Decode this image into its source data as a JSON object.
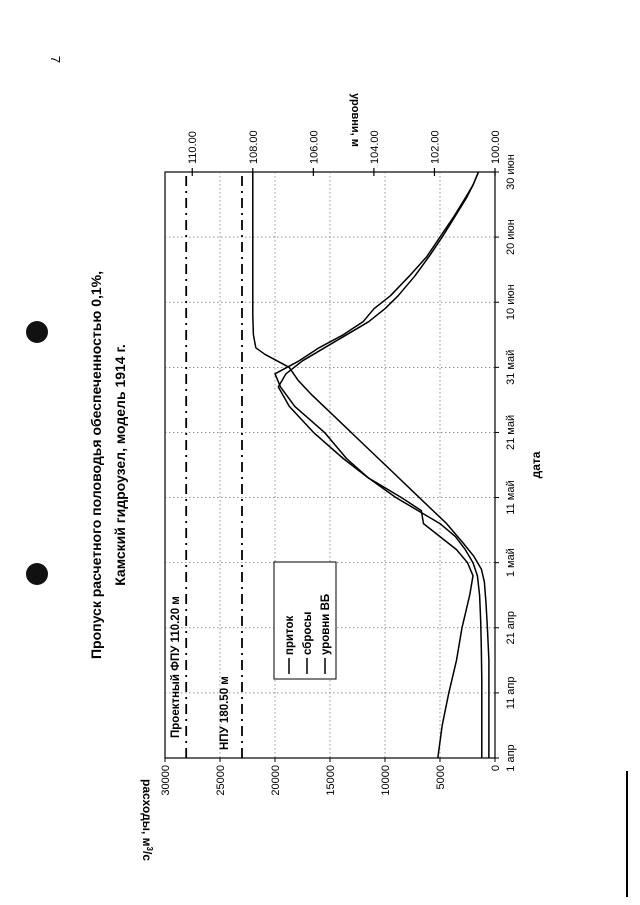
{
  "page_number": "7",
  "chart_data": {
    "type": "line",
    "title": "Пропуск расчетного половодья обеспеченностью 0,1%,",
    "subtitle": "Камский гидроузел, модель 1914 г.",
    "xlabel": "дата",
    "ylabel": "расходы, м³/с",
    "ylabel_parts": {
      "main": "расходы, м",
      "sup": "3",
      "tail": "/с"
    },
    "y2label": "уровни, м",
    "x_ticks": [
      "1 апр",
      "11 апр",
      "21 апр",
      "1 май",
      "11 май",
      "21 май",
      "31 май",
      "10 июн",
      "20 июн",
      "30 июн"
    ],
    "x_range": [
      0,
      90
    ],
    "y_ticks": [
      "0",
      "5000",
      "10000",
      "15000",
      "20000",
      "25000",
      "30000"
    ],
    "ylim": [
      0,
      30000
    ],
    "y2_ticks": [
      "100.00",
      "102.00",
      "104.00",
      "106.00",
      "108.00",
      "110.00"
    ],
    "y2lim": [
      100,
      110.9
    ],
    "grid": true,
    "legend_position": "upper-left",
    "series": [
      {
        "name": "приток",
        "axis": "left",
        "x": [
          0,
          6,
          12,
          17,
          21,
          25,
          28,
          30,
          32,
          34,
          36,
          38,
          40,
          43,
          46,
          50,
          54,
          57,
          59,
          61,
          63,
          65,
          67,
          69,
          71,
          74,
          77,
          80,
          83,
          86,
          88,
          90
        ],
        "y": [
          1200,
          1200,
          1200,
          1250,
          1300,
          1400,
          1600,
          2000,
          2700,
          3600,
          5000,
          7000,
          9000,
          11500,
          13800,
          16500,
          18700,
          19700,
          19000,
          17500,
          15500,
          13500,
          11500,
          10000,
          8800,
          7300,
          6000,
          4800,
          3700,
          2600,
          2000,
          1500
        ]
      },
      {
        "name": "сбросы",
        "axis": "left",
        "x": [
          0,
          5,
          10,
          15,
          20,
          25,
          28,
          30,
          32,
          34,
          36,
          38,
          40,
          43,
          46,
          50,
          54,
          57,
          59,
          61,
          63,
          65,
          67,
          69,
          71,
          74,
          77,
          80,
          83,
          86,
          88,
          90
        ],
        "y": [
          5200,
          4800,
          4200,
          3500,
          3000,
          2300,
          2000,
          2500,
          3500,
          5000,
          6500,
          6700,
          8500,
          11500,
          13500,
          15500,
          18200,
          19500,
          20000,
          17800,
          16000,
          13800,
          12000,
          11000,
          9500,
          7800,
          6200,
          5000,
          3800,
          2700,
          2000,
          1500
        ]
      },
      {
        "name": "уровни ВБ",
        "axis": "right",
        "x": [
          0,
          8,
          15,
          20,
          24,
          27,
          29,
          31,
          33,
          36,
          40,
          44,
          48,
          52,
          56,
          58,
          60,
          61,
          62,
          63,
          65,
          68,
          70,
          75,
          80,
          85,
          90
        ],
        "y": [
          100.2,
          100.2,
          100.2,
          100.25,
          100.3,
          100.35,
          100.45,
          100.7,
          101.05,
          101.6,
          102.5,
          103.4,
          104.3,
          105.2,
          106.1,
          106.5,
          106.8,
          107.2,
          107.6,
          107.9,
          107.98,
          108.0,
          108.0,
          108.0,
          108.0,
          108.0,
          108.0
        ]
      },
      {
        "name": "НПУ 180.50 м",
        "axis": "left",
        "style": "dash-dot",
        "x": [
          0,
          90
        ],
        "y": [
          23000,
          23000
        ]
      },
      {
        "name": "Проектный ФПУ 110.20 м",
        "axis": "right",
        "style": "dash-dot",
        "x": [
          0,
          90
        ],
        "y": [
          110.2,
          110.2
        ]
      }
    ],
    "legend": [
      "приток",
      "сбросы",
      "уровни ВБ"
    ],
    "annotations": [
      "НПУ 180.50 м",
      "Проектный ФПУ 110.20 м"
    ]
  }
}
